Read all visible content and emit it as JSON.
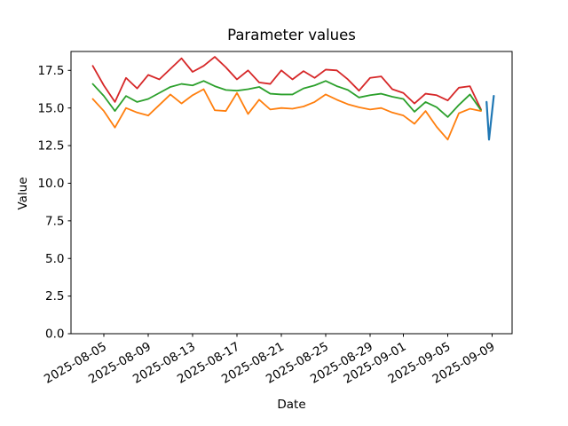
{
  "window": {
    "background": "#ffffff"
  },
  "chart_data": {
    "type": "line",
    "title": "Parameter values",
    "xlabel": "Date",
    "ylabel": "Value",
    "grid": false,
    "legend_position": "none",
    "ylim": [
      0,
      18.75
    ],
    "x_start_date": "2025-08-04",
    "x_dates": [
      "2025-08-04",
      "2025-08-05",
      "2025-08-06",
      "2025-08-07",
      "2025-08-08",
      "2025-08-09",
      "2025-08-10",
      "2025-08-11",
      "2025-08-12",
      "2025-08-13",
      "2025-08-14",
      "2025-08-15",
      "2025-08-16",
      "2025-08-17",
      "2025-08-18",
      "2025-08-19",
      "2025-08-20",
      "2025-08-21",
      "2025-08-22",
      "2025-08-23",
      "2025-08-24",
      "2025-08-25",
      "2025-08-26",
      "2025-08-27",
      "2025-08-28",
      "2025-08-29",
      "2025-08-30",
      "2025-08-31",
      "2025-09-01",
      "2025-09-02",
      "2025-09-03",
      "2025-09-04",
      "2025-09-05",
      "2025-09-06",
      "2025-09-07",
      "2025-09-08"
    ],
    "series": [
      {
        "name": "series-red",
        "color": "#d62728",
        "values": [
          17.8,
          16.5,
          15.4,
          17.0,
          16.3,
          17.2,
          16.9,
          17.6,
          18.3,
          17.4,
          17.8,
          18.4,
          17.7,
          16.9,
          17.5,
          16.7,
          16.6,
          17.5,
          16.9,
          17.45,
          17.0,
          17.55,
          17.5,
          16.9,
          16.15,
          17.0,
          17.1,
          16.25,
          16.0,
          15.3,
          15.95,
          15.85,
          15.5,
          16.35,
          16.45,
          14.9
        ]
      },
      {
        "name": "series-green",
        "color": "#2ca02c",
        "values": [
          16.6,
          15.8,
          14.8,
          15.8,
          15.4,
          15.6,
          16.0,
          16.4,
          16.6,
          16.5,
          16.8,
          16.45,
          16.2,
          16.15,
          16.25,
          16.4,
          15.95,
          15.9,
          15.9,
          16.3,
          16.5,
          16.8,
          16.45,
          16.2,
          15.7,
          15.85,
          15.95,
          15.75,
          15.6,
          14.75,
          15.4,
          15.05,
          14.4,
          15.2,
          15.9,
          14.85
        ]
      },
      {
        "name": "series-orange",
        "color": "#ff7f0e",
        "values": [
          15.6,
          14.8,
          13.7,
          15.0,
          14.7,
          14.5,
          15.2,
          15.9,
          15.3,
          15.85,
          16.25,
          14.85,
          14.8,
          16.0,
          14.6,
          15.55,
          14.9,
          15.0,
          14.95,
          15.1,
          15.4,
          15.9,
          15.55,
          15.25,
          15.05,
          14.9,
          15.0,
          14.7,
          14.5,
          13.95,
          14.8,
          13.75,
          12.9,
          14.65,
          14.95,
          14.8
        ]
      }
    ],
    "partial_series": {
      "name": "series-blue",
      "color": "#1f77b4",
      "day_offsets": [
        35.5,
        35.72,
        36.15
      ],
      "values": [
        15.4,
        12.9,
        15.8
      ]
    },
    "x_tick_labels": [
      "2025-08-05",
      "2025-08-09",
      "2025-08-13",
      "2025-08-17",
      "2025-08-21",
      "2025-08-25",
      "2025-08-29",
      "2025-09-01",
      "2025-09-05",
      "2025-09-09"
    ],
    "y_tick_labels": [
      "0.0",
      "2.5",
      "5.0",
      "7.5",
      "10.0",
      "12.5",
      "15.0",
      "17.5"
    ]
  }
}
